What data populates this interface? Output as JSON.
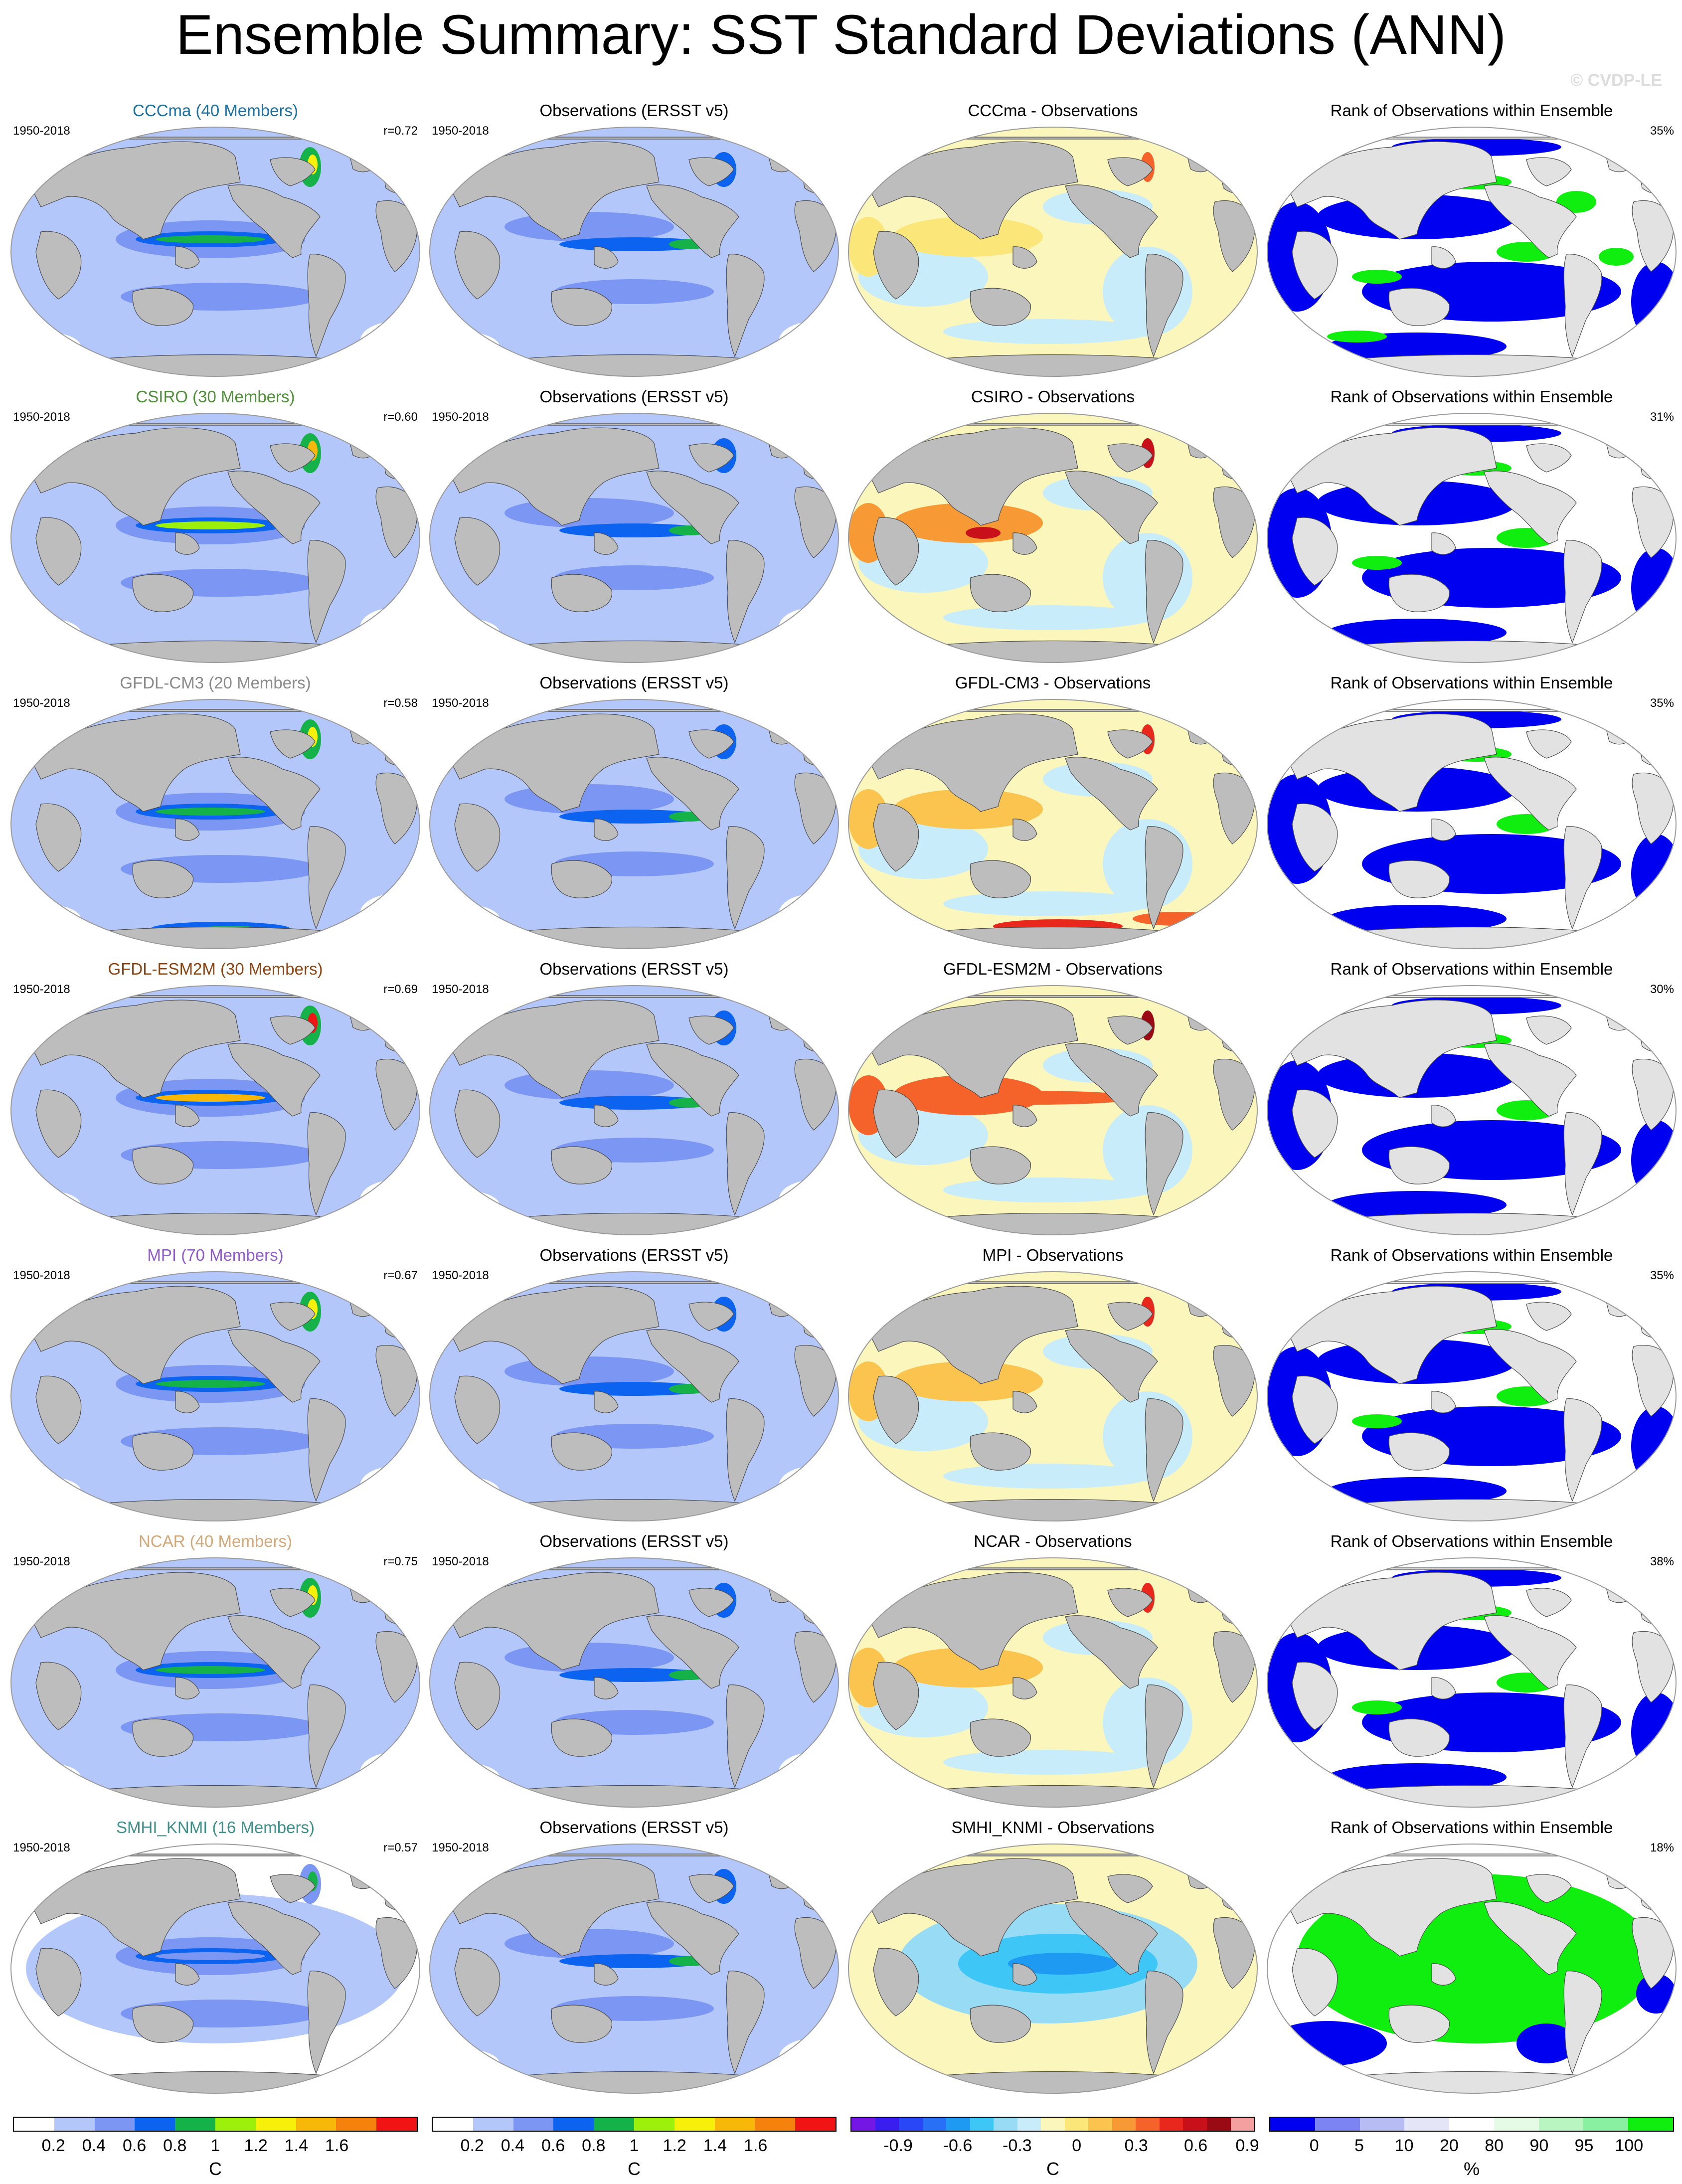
{
  "title": "Ensemble Summary: SST Standard Deviations (ANN)",
  "watermark": "© CVDP-LE",
  "period": "1950-2018",
  "obs_title": "Observations (ERSST v5)",
  "rank_title": "Rank of Observations within Ensemble",
  "colors": {
    "land": "#bdbdbd",
    "sd": [
      "#ffffff",
      "#b4c7fb",
      "#7b97f3",
      "#0b63f0",
      "#15b24a",
      "#9cf00c",
      "#f7f00a",
      "#f7b80a",
      "#f5820c",
      "#f01414"
    ],
    "diff": [
      "#7417e4",
      "#3a1ef0",
      "#2a47f7",
      "#2870f5",
      "#1e9af2",
      "#3ec6f7",
      "#98dbf5",
      "#c8ecfa",
      "#fbf6bc",
      "#fbe67a",
      "#fbc44f",
      "#f79a35",
      "#f5622a",
      "#e8281d",
      "#c8101a",
      "#9a0a14",
      "#f5a0a0"
    ],
    "rank": [
      "#0000f0",
      "#7b84f2",
      "#b8bcf5",
      "#e4e6f8",
      "#ffffff",
      "#e6fbe6",
      "#b8f5c0",
      "#88f0a0",
      "#10ee10"
    ]
  },
  "rows": [
    {
      "model": "CCCma (40 Members)",
      "label": "CCCma",
      "color": "#1a6fa3",
      "r": "r=0.72",
      "rank_pct": "35%"
    },
    {
      "model": "CSIRO (30 Members)",
      "label": "CSIRO",
      "color": "#4f8f3a",
      "r": "r=0.60",
      "rank_pct": "31%"
    },
    {
      "model": "GFDL-CM3 (20 Members)",
      "label": "GFDL-CM3",
      "color": "#8a8a8a",
      "r": "r=0.58",
      "rank_pct": "35%"
    },
    {
      "model": "GFDL-ESM2M (30 Members)",
      "label": "GFDL-ESM2M",
      "color": "#8b4513",
      "r": "r=0.69",
      "rank_pct": "30%"
    },
    {
      "model": "MPI (70 Members)",
      "label": "MPI",
      "color": "#8e5bc9",
      "r": "r=0.67",
      "rank_pct": "35%"
    },
    {
      "model": "NCAR (40 Members)",
      "label": "NCAR",
      "color": "#d2a878",
      "r": "r=0.75",
      "rank_pct": "38%"
    },
    {
      "model": "SMHI_KNMI (16 Members)",
      "label": "SMHI_KNMI",
      "color": "#3f8f8a",
      "r": "r=0.57",
      "rank_pct": "18%"
    }
  ],
  "diff_suffix": " - Observations",
  "colorbars": [
    {
      "id": "sd-model",
      "scale": "sd",
      "ticks": [
        "0.2",
        "0.4",
        "0.6",
        "0.8",
        "1",
        "1.2",
        "1.4",
        "1.6"
      ],
      "unit": "C"
    },
    {
      "id": "sd-obs",
      "scale": "sd",
      "ticks": [
        "0.2",
        "0.4",
        "0.6",
        "0.8",
        "1",
        "1.2",
        "1.4",
        "1.6"
      ],
      "unit": "C"
    },
    {
      "id": "diff",
      "scale": "diff",
      "ticks": [
        "-0.9",
        "-0.6",
        "-0.3",
        "0",
        "0.3",
        "0.6",
        "0.9"
      ],
      "unit": "C"
    },
    {
      "id": "rank",
      "scale": "rank",
      "ticks": [
        "0",
        "5",
        "10",
        "20",
        "80",
        "90",
        "95",
        "100"
      ],
      "unit": "%"
    }
  ]
}
